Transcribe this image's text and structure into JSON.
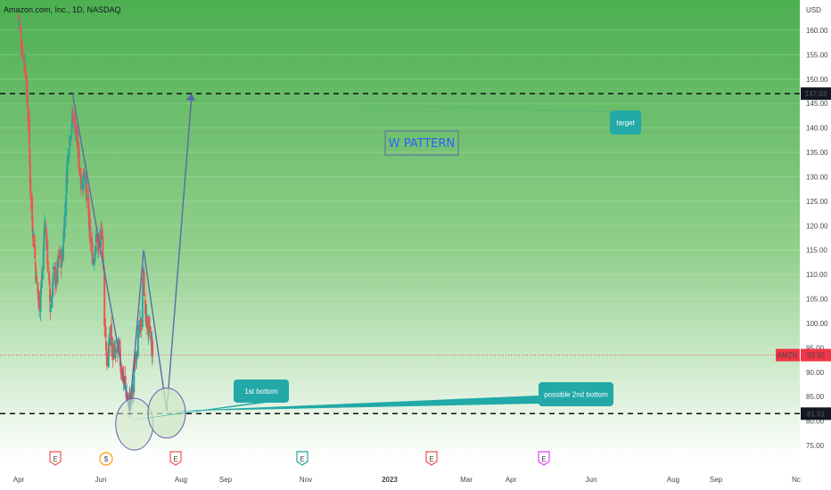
{
  "header": {
    "title": "Amazon.com, Inc., 1D, NASDAQ"
  },
  "colors": {
    "up": "#26a69a",
    "down": "#ef5350",
    "pattern_line": "#5b6aa6",
    "callout": "#22a9a8",
    "circle_fill": "#cfe8c4",
    "circle_stroke": "#6a5fb3",
    "bg_top": "#4caf50",
    "bg_bottom": "#ffffff",
    "price_tag": "#f23645",
    "level_tag": "#131722"
  },
  "chart_data": {
    "type": "candlestick",
    "title": "Amazon.com, Inc., 1D, NASDAQ",
    "currency": "USD",
    "symbol": "AMZN",
    "current_price": "93.50",
    "y_range": [
      73,
      164
    ],
    "y_ticks": [
      "75.00",
      "80.00",
      "85.00",
      "90.00",
      "95.00",
      "100.00",
      "105.00",
      "110.00",
      "115.00",
      "120.00",
      "125.00",
      "130.00",
      "135.00",
      "140.00",
      "145.00",
      "150.00",
      "155.00",
      "160.00"
    ],
    "x_ticks": [
      "Apr",
      "Jun",
      "Aug",
      "Sep",
      "Nov",
      "2023",
      "Mar",
      "Apr",
      "Jun",
      "Aug",
      "Sep",
      "Nc"
    ],
    "levels": [
      {
        "value": 147.03,
        "label": "147.03"
      },
      {
        "value": 81.51,
        "label": "81.51"
      }
    ],
    "close_path": [
      {
        "date": "2022-03-29",
        "close": 163
      },
      {
        "date": "2022-04-06",
        "close": 157
      },
      {
        "date": "2022-04-14",
        "close": 153
      },
      {
        "date": "2022-04-21",
        "close": 145
      },
      {
        "date": "2022-04-29",
        "close": 125
      },
      {
        "date": "2022-05-06",
        "close": 117
      },
      {
        "date": "2022-05-13",
        "close": 108
      },
      {
        "date": "2022-05-20",
        "close": 104
      },
      {
        "date": "2022-05-27",
        "close": 110
      },
      {
        "date": "2022-06-03",
        "close": 122
      },
      {
        "date": "2022-06-10",
        "close": 112
      },
      {
        "date": "2022-06-16",
        "close": 103
      },
      {
        "date": "2022-06-24",
        "close": 110
      },
      {
        "date": "2022-07-01",
        "close": 109
      },
      {
        "date": "2022-07-08",
        "close": 114
      },
      {
        "date": "2022-07-15",
        "close": 113
      },
      {
        "date": "2022-07-22",
        "close": 123
      },
      {
        "date": "2022-07-29",
        "close": 134
      },
      {
        "date": "2022-08-05",
        "close": 140
      },
      {
        "date": "2022-08-12",
        "close": 143
      },
      {
        "date": "2022-08-19",
        "close": 139
      },
      {
        "date": "2022-08-26",
        "close": 133
      },
      {
        "date": "2022-09-02",
        "close": 128
      },
      {
        "date": "2022-09-09",
        "close": 132
      },
      {
        "date": "2022-09-16",
        "close": 124
      },
      {
        "date": "2022-09-23",
        "close": 117
      },
      {
        "date": "2022-09-30",
        "close": 113
      },
      {
        "date": "2022-10-07",
        "close": 117
      },
      {
        "date": "2022-10-14",
        "close": 115
      },
      {
        "date": "2022-10-21",
        "close": 119
      },
      {
        "date": "2022-10-27",
        "close": 110
      },
      {
        "date": "2022-10-28",
        "close": 101
      },
      {
        "date": "2022-11-04",
        "close": 91
      },
      {
        "date": "2022-11-11",
        "close": 98
      },
      {
        "date": "2022-11-18",
        "close": 94
      },
      {
        "date": "2022-11-25",
        "close": 93
      },
      {
        "date": "2022-12-02",
        "close": 95
      },
      {
        "date": "2022-12-09",
        "close": 90
      },
      {
        "date": "2022-12-16",
        "close": 88
      },
      {
        "date": "2022-12-23",
        "close": 85
      },
      {
        "date": "2022-12-30",
        "close": 84
      },
      {
        "date": "2023-01-06",
        "close": 86
      },
      {
        "date": "2023-01-13",
        "close": 94
      },
      {
        "date": "2023-01-20",
        "close": 97
      },
      {
        "date": "2023-01-27",
        "close": 100
      },
      {
        "date": "2023-02-02",
        "close": 112
      },
      {
        "date": "2023-02-03",
        "close": 104
      },
      {
        "date": "2023-02-10",
        "close": 100
      },
      {
        "date": "2023-02-17",
        "close": 98
      },
      {
        "date": "2023-02-24",
        "close": 94
      }
    ],
    "pattern": {
      "points": [
        {
          "date": "2022-08-10",
          "price": 147
        },
        {
          "date": "2022-12-29",
          "price": 82
        },
        {
          "date": "2023-02-02",
          "price": 115
        },
        {
          "date": "2023-03-31",
          "price": 82
        },
        {
          "date": "2023-06-01",
          "price": 147
        }
      ]
    },
    "annotations": [
      {
        "id": "first",
        "label": "1st bottom",
        "date": "2022-12-30",
        "price": 81
      },
      {
        "id": "second",
        "label": "possible 2nd bottom",
        "date": "2023-03-31",
        "price": 82
      },
      {
        "id": "target",
        "label": "target",
        "date": "2023-06-01",
        "price": 147
      }
    ],
    "pattern_title": "W PATTERN",
    "event_markers": [
      {
        "letter": "E",
        "kind": "earnings"
      },
      {
        "letter": "$",
        "kind": "dividend"
      },
      {
        "letter": "E",
        "kind": "earnings"
      },
      {
        "letter": "E",
        "kind": "earnings-reported"
      },
      {
        "letter": "E",
        "kind": "earnings"
      },
      {
        "letter": "E",
        "kind": "earnings-upcoming"
      }
    ]
  }
}
